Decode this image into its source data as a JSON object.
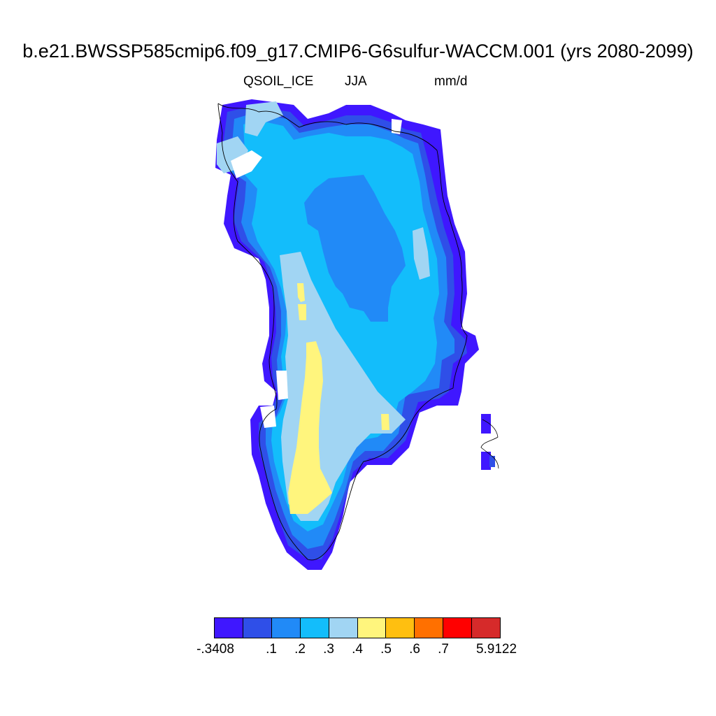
{
  "title": "b.e21.BWSSP585cmip6.f09_g17.CMIP6-G6sulfur-WACCM.001 (yrs 2080-2099)",
  "variable": "QSOIL_ICE",
  "season": "JJA",
  "units": "mm/d",
  "colorbar": {
    "colors": [
      "#3f17ff",
      "#2f4fe8",
      "#218af7",
      "#13bdfb",
      "#a1d5f3",
      "#fff57d",
      "#ffbf10",
      "#ff7000",
      "#ff0000",
      "#d62a2a"
    ],
    "labels": [
      "-.3408",
      ".1",
      ".2",
      ".3",
      ".4",
      ".5",
      ".6",
      ".7",
      "5.9122"
    ]
  }
}
